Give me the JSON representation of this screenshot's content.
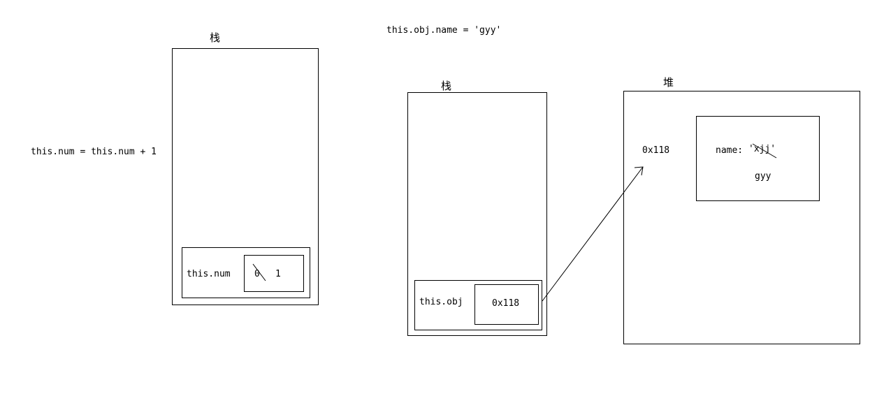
{
  "left": {
    "stack_label": "栈",
    "expression": "this.num = this.num + 1",
    "var_name": "this.num",
    "old_value": "0",
    "new_value": "1"
  },
  "right": {
    "expression": "this.obj.name = 'gyy'",
    "stack_label": "栈",
    "heap_label": "堆",
    "var_name": "this.obj",
    "stack_value": "0x118",
    "heap_address": "0x118",
    "prop_label": "name:",
    "old_prop_value": "'xjj'",
    "new_prop_value": "gyy"
  }
}
